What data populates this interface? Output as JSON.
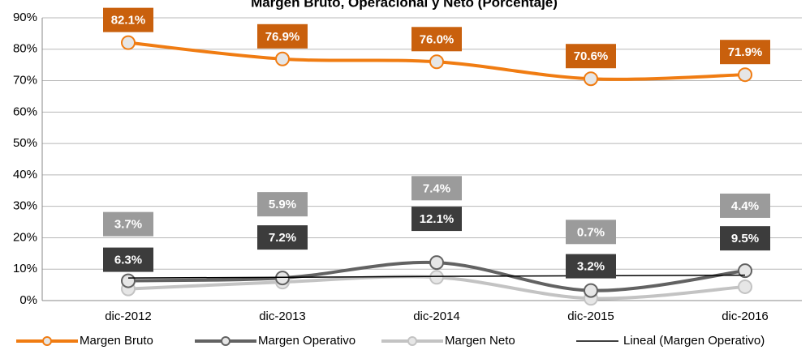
{
  "chart_data": {
    "type": "line",
    "title": "Margen Bruto, Operacional y Neto (Porcentaje)",
    "categories": [
      "dic-2012",
      "dic-2013",
      "dic-2014",
      "dic-2015",
      "dic-2016"
    ],
    "ylim": [
      0,
      90
    ],
    "yticks": [
      {
        "value": 0,
        "label": "0%"
      },
      {
        "value": 10,
        "label": "10%"
      },
      {
        "value": 20,
        "label": "20%"
      },
      {
        "value": 30,
        "label": "30%"
      },
      {
        "value": 40,
        "label": "40%"
      },
      {
        "value": 50,
        "label": "50%"
      },
      {
        "value": 60,
        "label": "60%"
      },
      {
        "value": 70,
        "label": "70%"
      },
      {
        "value": 80,
        "label": "80%"
      },
      {
        "value": 90,
        "label": "90%"
      }
    ],
    "grid": true,
    "legend": "bottom",
    "series": [
      {
        "name": "Margen Bruto",
        "color": "#f07c12",
        "label_color": "#c9600d",
        "values": [
          82.1,
          76.9,
          76.0,
          70.6,
          71.9
        ],
        "value_labels": [
          "82.1%",
          "76.9%",
          "76.0%",
          "70.6%",
          "71.9%"
        ]
      },
      {
        "name": "Margen Operativo",
        "color": "#626262",
        "label_color": "#3c3c3c",
        "values": [
          6.3,
          7.2,
          12.1,
          3.2,
          9.5
        ],
        "value_labels": [
          "6.3%",
          "7.2%",
          "12.1%",
          "3.2%",
          "9.5%"
        ]
      },
      {
        "name": "Margen Neto",
        "color": "#c3c3c3",
        "label_color": "#9b9b9b",
        "values": [
          3.7,
          5.9,
          7.4,
          0.7,
          4.4
        ],
        "value_labels": [
          "3.7%",
          "5.9%",
          "7.4%",
          "0.7%",
          "4.4%"
        ]
      },
      {
        "name": "Lineal (Margen Operativo)",
        "color": "#000000",
        "trendline": true,
        "values": [
          7.2,
          7.4,
          7.7,
          7.9,
          8.1
        ]
      }
    ]
  }
}
